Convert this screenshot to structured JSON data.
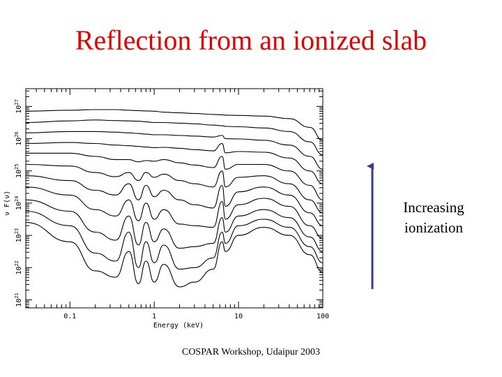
{
  "slide": {
    "title": "Reflection from an ionized slab",
    "footer": "COSPAR Workshop, Udaipur 2003",
    "annotation_line1": "Increasing",
    "annotation_line2": "ionization",
    "title_color": "#e00000",
    "arrow_color": "#3a3a8a"
  },
  "chart_data": {
    "type": "line",
    "title": "",
    "xlabel": "Energy (keV)",
    "ylabel": "ν F(ν)",
    "xscale": "log",
    "yscale": "log",
    "xlim": [
      0.03,
      100
    ],
    "ylim_log10": [
      20.75,
      27.55
    ],
    "x_ticks": [
      {
        "value": 0.1,
        "label": "0.1"
      },
      {
        "value": 1,
        "label": "1"
      },
      {
        "value": 10,
        "label": "10"
      },
      {
        "value": 100,
        "label": "100"
      }
    ],
    "y_ticks": [
      {
        "exp": 21,
        "base": "10",
        "sup": "21"
      },
      {
        "exp": 22,
        "base": "10",
        "sup": "22"
      },
      {
        "exp": 23,
        "base": "10",
        "sup": "23"
      },
      {
        "exp": 24,
        "base": "10",
        "sup": "24"
      },
      {
        "exp": 25,
        "base": "10",
        "sup": "25"
      },
      {
        "exp": 26,
        "base": "10",
        "sup": "26"
      },
      {
        "exp": 27,
        "base": "10",
        "sup": "27"
      }
    ],
    "x": [
      0.03,
      0.1,
      0.2,
      0.35,
      0.5,
      0.65,
      0.8,
      1,
      1.3,
      2,
      3,
      5,
      6.4,
      7,
      10,
      20,
      40,
      70,
      100
    ],
    "series": [
      {
        "log_flux": [
          26.85,
          26.88,
          26.9,
          26.9,
          26.88,
          26.87,
          26.86,
          26.85,
          26.82,
          26.8,
          26.78,
          26.75,
          26.74,
          26.73,
          26.72,
          26.7,
          26.62,
          26.35,
          25.95
        ]
      },
      {
        "log_flux": [
          26.5,
          26.55,
          26.58,
          26.56,
          26.55,
          26.54,
          26.52,
          26.5,
          26.5,
          26.48,
          26.46,
          26.42,
          26.4,
          26.38,
          26.37,
          26.33,
          26.22,
          25.9,
          25.5
        ]
      },
      {
        "log_flux": [
          26.18,
          26.22,
          26.22,
          26.2,
          26.18,
          26.16,
          26.14,
          26.12,
          26.12,
          26.1,
          26.08,
          26.05,
          26.1,
          26.0,
          25.99,
          25.95,
          25.8,
          25.45,
          25.05
        ]
      },
      {
        "log_flux": [
          25.85,
          25.88,
          25.85,
          25.8,
          25.78,
          25.76,
          25.74,
          25.72,
          25.73,
          25.7,
          25.66,
          25.62,
          25.85,
          25.56,
          25.6,
          25.58,
          25.4,
          25.0,
          24.6
        ]
      },
      {
        "log_flux": [
          25.55,
          25.55,
          25.45,
          25.35,
          25.35,
          25.28,
          25.32,
          25.3,
          25.35,
          25.25,
          25.18,
          25.1,
          25.45,
          25.05,
          25.2,
          25.2,
          25.0,
          24.55,
          24.1
        ]
      },
      {
        "log_flux": [
          25.2,
          25.15,
          24.95,
          24.82,
          24.95,
          24.7,
          24.95,
          24.8,
          24.9,
          24.7,
          24.6,
          24.5,
          25.0,
          24.5,
          24.8,
          24.85,
          24.6,
          24.1,
          23.7
        ]
      },
      {
        "log_flux": [
          24.85,
          24.7,
          24.4,
          24.25,
          24.6,
          24.1,
          24.55,
          24.2,
          24.4,
          24.1,
          23.95,
          23.85,
          24.55,
          23.9,
          24.35,
          24.5,
          24.25,
          23.7,
          23.3
        ]
      },
      {
        "log_flux": [
          24.5,
          24.25,
          23.8,
          23.6,
          24.1,
          23.45,
          24.0,
          23.5,
          23.8,
          23.35,
          23.3,
          23.25,
          24.05,
          23.5,
          23.95,
          24.15,
          23.9,
          23.3,
          22.9
        ]
      },
      {
        "log_flux": [
          24.1,
          23.75,
          23.1,
          22.85,
          23.6,
          22.7,
          23.4,
          22.8,
          23.2,
          22.6,
          22.65,
          22.75,
          23.55,
          23.1,
          23.6,
          23.8,
          23.55,
          22.95,
          22.5
        ]
      },
      {
        "log_flux": [
          23.75,
          23.3,
          22.45,
          22.2,
          23.1,
          22.0,
          22.8,
          22.15,
          22.7,
          21.95,
          22.0,
          22.3,
          23.1,
          22.75,
          23.3,
          23.5,
          23.25,
          22.65,
          22.15
        ]
      },
      {
        "log_flux": [
          23.4,
          22.8,
          21.9,
          21.7,
          22.5,
          21.5,
          22.2,
          21.55,
          22.1,
          21.4,
          21.55,
          21.95,
          22.8,
          22.5,
          23.0,
          23.25,
          23.0,
          22.4,
          21.85
        ]
      }
    ]
  }
}
